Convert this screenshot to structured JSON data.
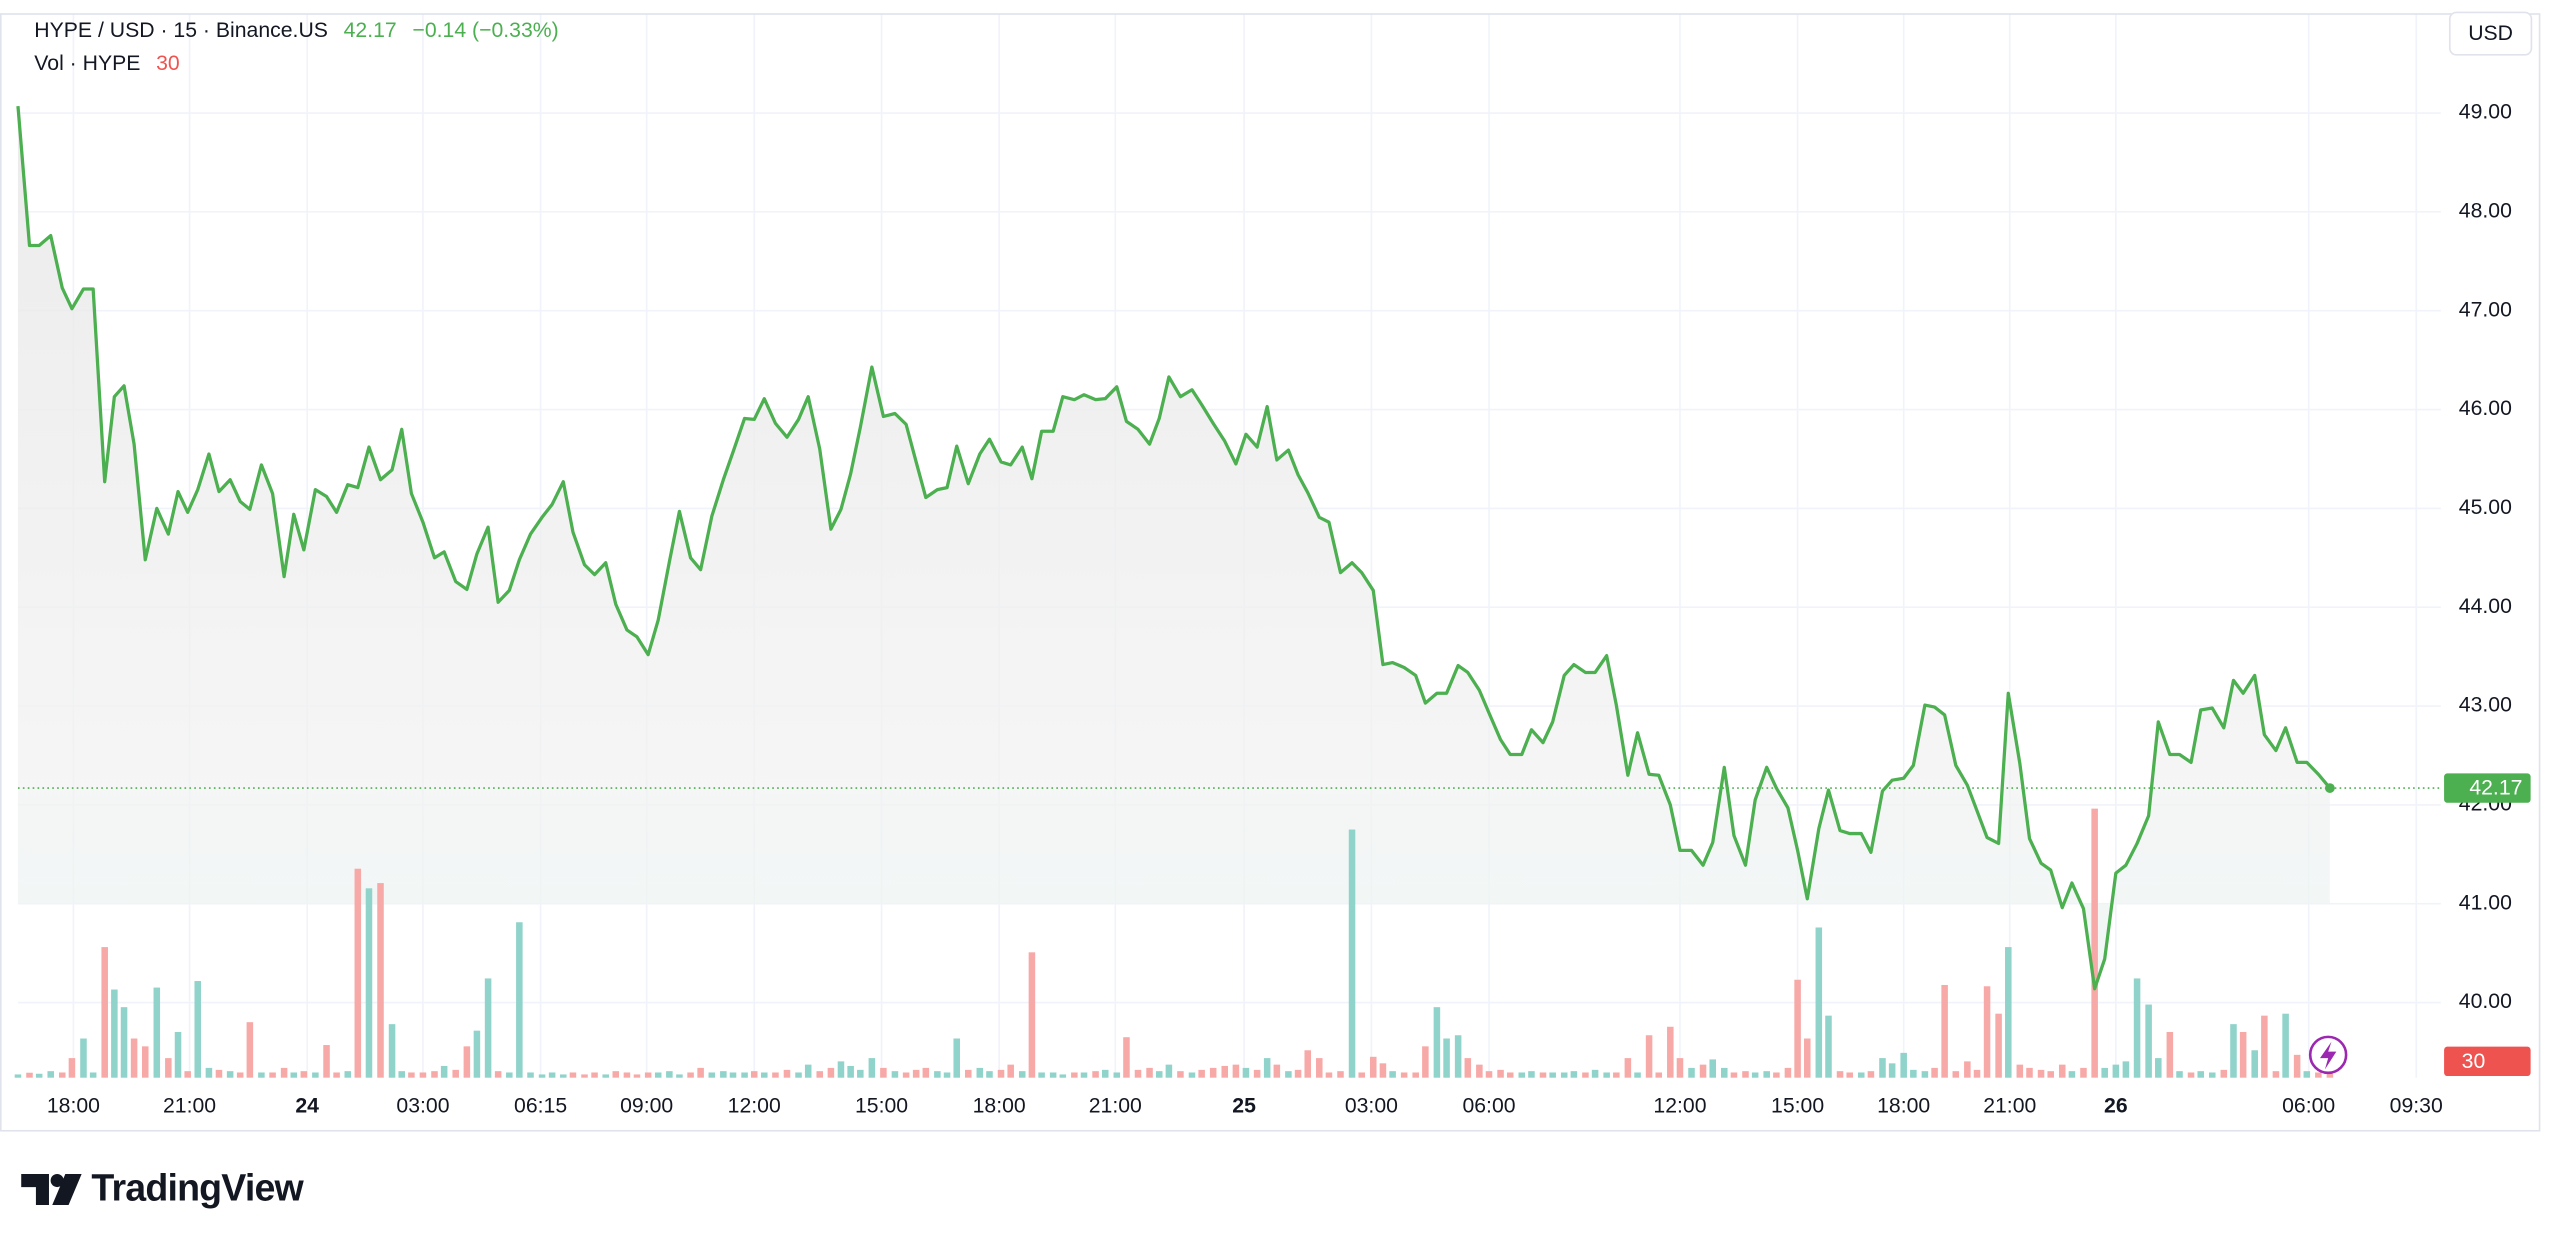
{
  "chart_data": {
    "type": "line",
    "title": "HYPE / USD · 15 · Binance.US",
    "last_price": 42.17,
    "change": "−0.14 (−0.33%)",
    "volume_label": "Vol · HYPE",
    "last_volume": 30,
    "currency": "USD",
    "brand": "TradingView",
    "grid": true,
    "xlim": [
      16.51,
      81.6
    ],
    "ylim": [
      39.24,
      50.01
    ],
    "y2lim": [
      0,
      2500
    ],
    "yticks": [
      {
        "value": 40,
        "label": "40.00"
      },
      {
        "value": 41,
        "label": "41.00"
      },
      {
        "value": 42,
        "label": "42.00"
      },
      {
        "value": 43,
        "label": "43.00"
      },
      {
        "value": 44,
        "label": "44.00"
      },
      {
        "value": 45,
        "label": "45.00"
      },
      {
        "value": 46,
        "label": "46.00"
      },
      {
        "value": 47,
        "label": "47.00"
      },
      {
        "value": 48,
        "label": "48.00"
      },
      {
        "value": 49,
        "label": "49.00"
      }
    ],
    "xticks": [
      {
        "value": 18.0,
        "label": "18:00"
      },
      {
        "value": 21.12,
        "label": "21:00"
      },
      {
        "value": 24.28,
        "label": "24"
      },
      {
        "value": 27.39,
        "label": "03:00"
      },
      {
        "value": 30.55,
        "label": "06:15"
      },
      {
        "value": 33.4,
        "label": "09:00"
      },
      {
        "value": 36.29,
        "label": "12:00"
      },
      {
        "value": 39.71,
        "label": "15:00"
      },
      {
        "value": 42.87,
        "label": "18:00"
      },
      {
        "value": 45.99,
        "label": "21:00"
      },
      {
        "value": 49.45,
        "label": "25"
      },
      {
        "value": 52.87,
        "label": "03:00"
      },
      {
        "value": 56.03,
        "label": "06:00"
      },
      {
        "value": 61.16,
        "label": "12:00"
      },
      {
        "value": 64.32,
        "label": "15:00"
      },
      {
        "value": 67.17,
        "label": "18:00"
      },
      {
        "value": 70.02,
        "label": "21:00"
      },
      {
        "value": 72.87,
        "label": "26"
      },
      {
        "value": 78.05,
        "label": "06:00"
      },
      {
        "value": 80.94,
        "label": "09:30"
      }
    ],
    "x": [
      16.51,
      16.82,
      17.08,
      17.39,
      17.7,
      17.96,
      18.27,
      18.53,
      18.84,
      19.1,
      19.36,
      19.63,
      19.93,
      20.24,
      20.55,
      20.81,
      21.07,
      21.34,
      21.64,
      21.91,
      22.21,
      22.48,
      22.74,
      23.05,
      23.35,
      23.66,
      23.92,
      24.19,
      24.5,
      24.8,
      25.07,
      25.37,
      25.64,
      25.94,
      26.25,
      26.56,
      26.82,
      27.08,
      27.39,
      27.7,
      27.96,
      28.27,
      28.57,
      28.84,
      29.14,
      29.41,
      29.71,
      29.98,
      30.28,
      30.59,
      30.86,
      31.16,
      31.42,
      31.73,
      32.0,
      32.3,
      32.57,
      32.87,
      33.14,
      33.44,
      33.71,
      34.01,
      34.28,
      34.58,
      34.85,
      35.15,
      35.46,
      35.72,
      36.03,
      36.29,
      36.56,
      36.86,
      37.17,
      37.48,
      37.74,
      38.05,
      38.35,
      38.62,
      38.88,
      39.14,
      39.45,
      39.76,
      40.07,
      40.37,
      40.64,
      40.9,
      41.21,
      41.47,
      41.73,
      42.04,
      42.35,
      42.61,
      42.92,
      43.18,
      43.49,
      43.75,
      44.01,
      44.32,
      44.58,
      44.89,
      45.15,
      45.46,
      45.72,
      46.03,
      46.29,
      46.6,
      46.91,
      47.17,
      47.43,
      47.74,
      48.05,
      48.31,
      48.62,
      48.93,
      49.23,
      49.5,
      49.8,
      50.07,
      50.33,
      50.64,
      50.9,
      51.16,
      51.47,
      51.73,
      52.04,
      52.35,
      52.61,
      52.92,
      53.18,
      53.44,
      53.75,
      54.06,
      54.32,
      54.63,
      54.89,
      55.2,
      55.46,
      55.77,
      56.03,
      56.34,
      56.6,
      56.91,
      57.17,
      57.48,
      57.74,
      58.05,
      58.31,
      58.62,
      58.88,
      59.19,
      59.45,
      59.76,
      60.02,
      60.33,
      60.59,
      60.9,
      61.16,
      61.47,
      61.78,
      62.04,
      62.35,
      62.61,
      62.92,
      63.18,
      63.49,
      63.75,
      64.06,
      64.32,
      64.58,
      64.89,
      65.15,
      65.46,
      65.72,
      66.03,
      66.29,
      66.6,
      66.86,
      67.17,
      67.43,
      67.74,
      68.0,
      68.27,
      68.57,
      68.88,
      69.14,
      69.41,
      69.72,
      69.98,
      70.29,
      70.55,
      70.86,
      71.12,
      71.43,
      71.69,
      72.0,
      72.3,
      72.57,
      72.87,
      73.14,
      73.44,
      73.75,
      74.01,
      74.32,
      74.58,
      74.89,
      75.15,
      75.46,
      75.77,
      76.03,
      76.29,
      76.6,
      76.86,
      77.17,
      77.43,
      77.74,
      78.0,
      78.31,
      78.62
    ],
    "series": [
      {
        "color": "#4caf50",
        "values": [
          49.07,
          47.66,
          47.66,
          47.76,
          47.23,
          47.02,
          47.22,
          47.22,
          45.27,
          46.13,
          46.24,
          45.65,
          44.48,
          45.0,
          44.74,
          45.17,
          44.96,
          45.19,
          45.55,
          45.17,
          45.29,
          45.07,
          44.99,
          45.44,
          45.15,
          44.31,
          44.94,
          44.58,
          45.19,
          45.12,
          44.96,
          45.24,
          45.21,
          45.62,
          45.29,
          45.39,
          45.8,
          45.15,
          44.86,
          44.5,
          44.56,
          44.26,
          44.18,
          44.54,
          44.81,
          44.05,
          44.17,
          44.48,
          44.74,
          44.91,
          45.04,
          45.27,
          44.76,
          44.43,
          44.33,
          44.45,
          44.03,
          43.77,
          43.7,
          43.52,
          43.87,
          44.46,
          44.97,
          44.5,
          44.38,
          44.92,
          45.29,
          45.57,
          45.91,
          45.9,
          46.11,
          45.86,
          45.72,
          45.9,
          46.13,
          45.6,
          44.79,
          44.99,
          45.35,
          45.82,
          46.43,
          45.93,
          45.96,
          45.85,
          45.47,
          45.11,
          45.19,
          45.21,
          45.63,
          45.25,
          45.55,
          45.7,
          45.47,
          45.44,
          45.62,
          45.3,
          45.78,
          45.78,
          46.13,
          46.1,
          46.15,
          46.1,
          46.11,
          46.23,
          45.88,
          45.8,
          45.65,
          45.91,
          46.33,
          46.13,
          46.2,
          46.05,
          45.86,
          45.68,
          45.45,
          45.75,
          45.62,
          46.03,
          45.49,
          45.59,
          45.34,
          45.16,
          44.91,
          44.86,
          44.35,
          44.45,
          44.35,
          44.17,
          43.42,
          43.44,
          43.39,
          43.31,
          43.03,
          43.13,
          43.13,
          43.41,
          43.34,
          43.16,
          42.93,
          42.66,
          42.51,
          42.51,
          42.76,
          42.63,
          42.84,
          43.31,
          43.42,
          43.34,
          43.34,
          43.51,
          43.01,
          42.3,
          42.73,
          42.31,
          42.3,
          42.0,
          41.54,
          41.54,
          41.39,
          41.62,
          42.38,
          41.69,
          41.39,
          42.05,
          42.38,
          42.17,
          41.97,
          41.54,
          41.05,
          41.76,
          42.15,
          41.74,
          41.71,
          41.71,
          41.52,
          42.14,
          42.25,
          42.27,
          42.4,
          43.01,
          42.99,
          42.91,
          42.4,
          42.2,
          41.94,
          41.67,
          41.61,
          43.13,
          42.42,
          41.66,
          41.41,
          41.34,
          40.96,
          41.21,
          40.95,
          40.14,
          40.44,
          41.31,
          41.39,
          41.61,
          41.89,
          42.84,
          42.51,
          42.51,
          42.43,
          42.96,
          42.98,
          42.78,
          43.26,
          43.13,
          43.31,
          42.71,
          42.55,
          42.78,
          42.43,
          42.43,
          42.31,
          42.17
        ]
      },
      {
        "type": "bar",
        "axis": "y2",
        "up_color": "#8fd3ca",
        "down_color": "#f7a9a7",
        "values": [
          25,
          38,
          30,
          50,
          40,
          150,
          300,
          40,
          1000,
          675,
          540,
          300,
          240,
          690,
          150,
          350,
          50,
          740,
          75,
          60,
          50,
          40,
          425,
          40,
          40,
          75,
          40,
          50,
          40,
          250,
          40,
          50,
          1600,
          1450,
          1490,
          410,
          50,
          40,
          40,
          50,
          90,
          60,
          240,
          360,
          760,
          50,
          40,
          1190,
          40,
          25,
          40,
          25,
          40,
          25,
          40,
          25,
          50,
          40,
          25,
          40,
          40,
          50,
          25,
          40,
          75,
          40,
          50,
          40,
          40,
          50,
          40,
          40,
          60,
          40,
          100,
          50,
          75,
          125,
          90,
          60,
          150,
          75,
          50,
          40,
          60,
          75,
          50,
          40,
          300,
          60,
          75,
          50,
          60,
          100,
          50,
          960,
          40,
          40,
          25,
          40,
          40,
          50,
          60,
          40,
          310,
          60,
          75,
          50,
          100,
          50,
          40,
          60,
          75,
          90,
          100,
          75,
          60,
          150,
          100,
          50,
          60,
          210,
          150,
          40,
          50,
          1900,
          40,
          160,
          110,
          50,
          40,
          40,
          240,
          540,
          300,
          325,
          150,
          100,
          50,
          60,
          40,
          40,
          50,
          40,
          40,
          40,
          50,
          40,
          60,
          40,
          40,
          150,
          40,
          325,
          40,
          390,
          150,
          75,
          100,
          140,
          75,
          40,
          50,
          40,
          50,
          40,
          75,
          750,
          300,
          1150,
          475,
          50,
          40,
          40,
          50,
          150,
          110,
          190,
          60,
          50,
          75,
          710,
          50,
          125,
          60,
          700,
          490,
          1000,
          100,
          75,
          60,
          50,
          100,
          50,
          75,
          2060,
          75,
          100,
          125,
          760,
          560,
          150,
          350,
          50,
          40,
          50,
          40,
          60,
          410,
          350,
          210,
          475,
          50,
          490,
          175,
          50,
          40,
          30
        ]
      }
    ]
  }
}
